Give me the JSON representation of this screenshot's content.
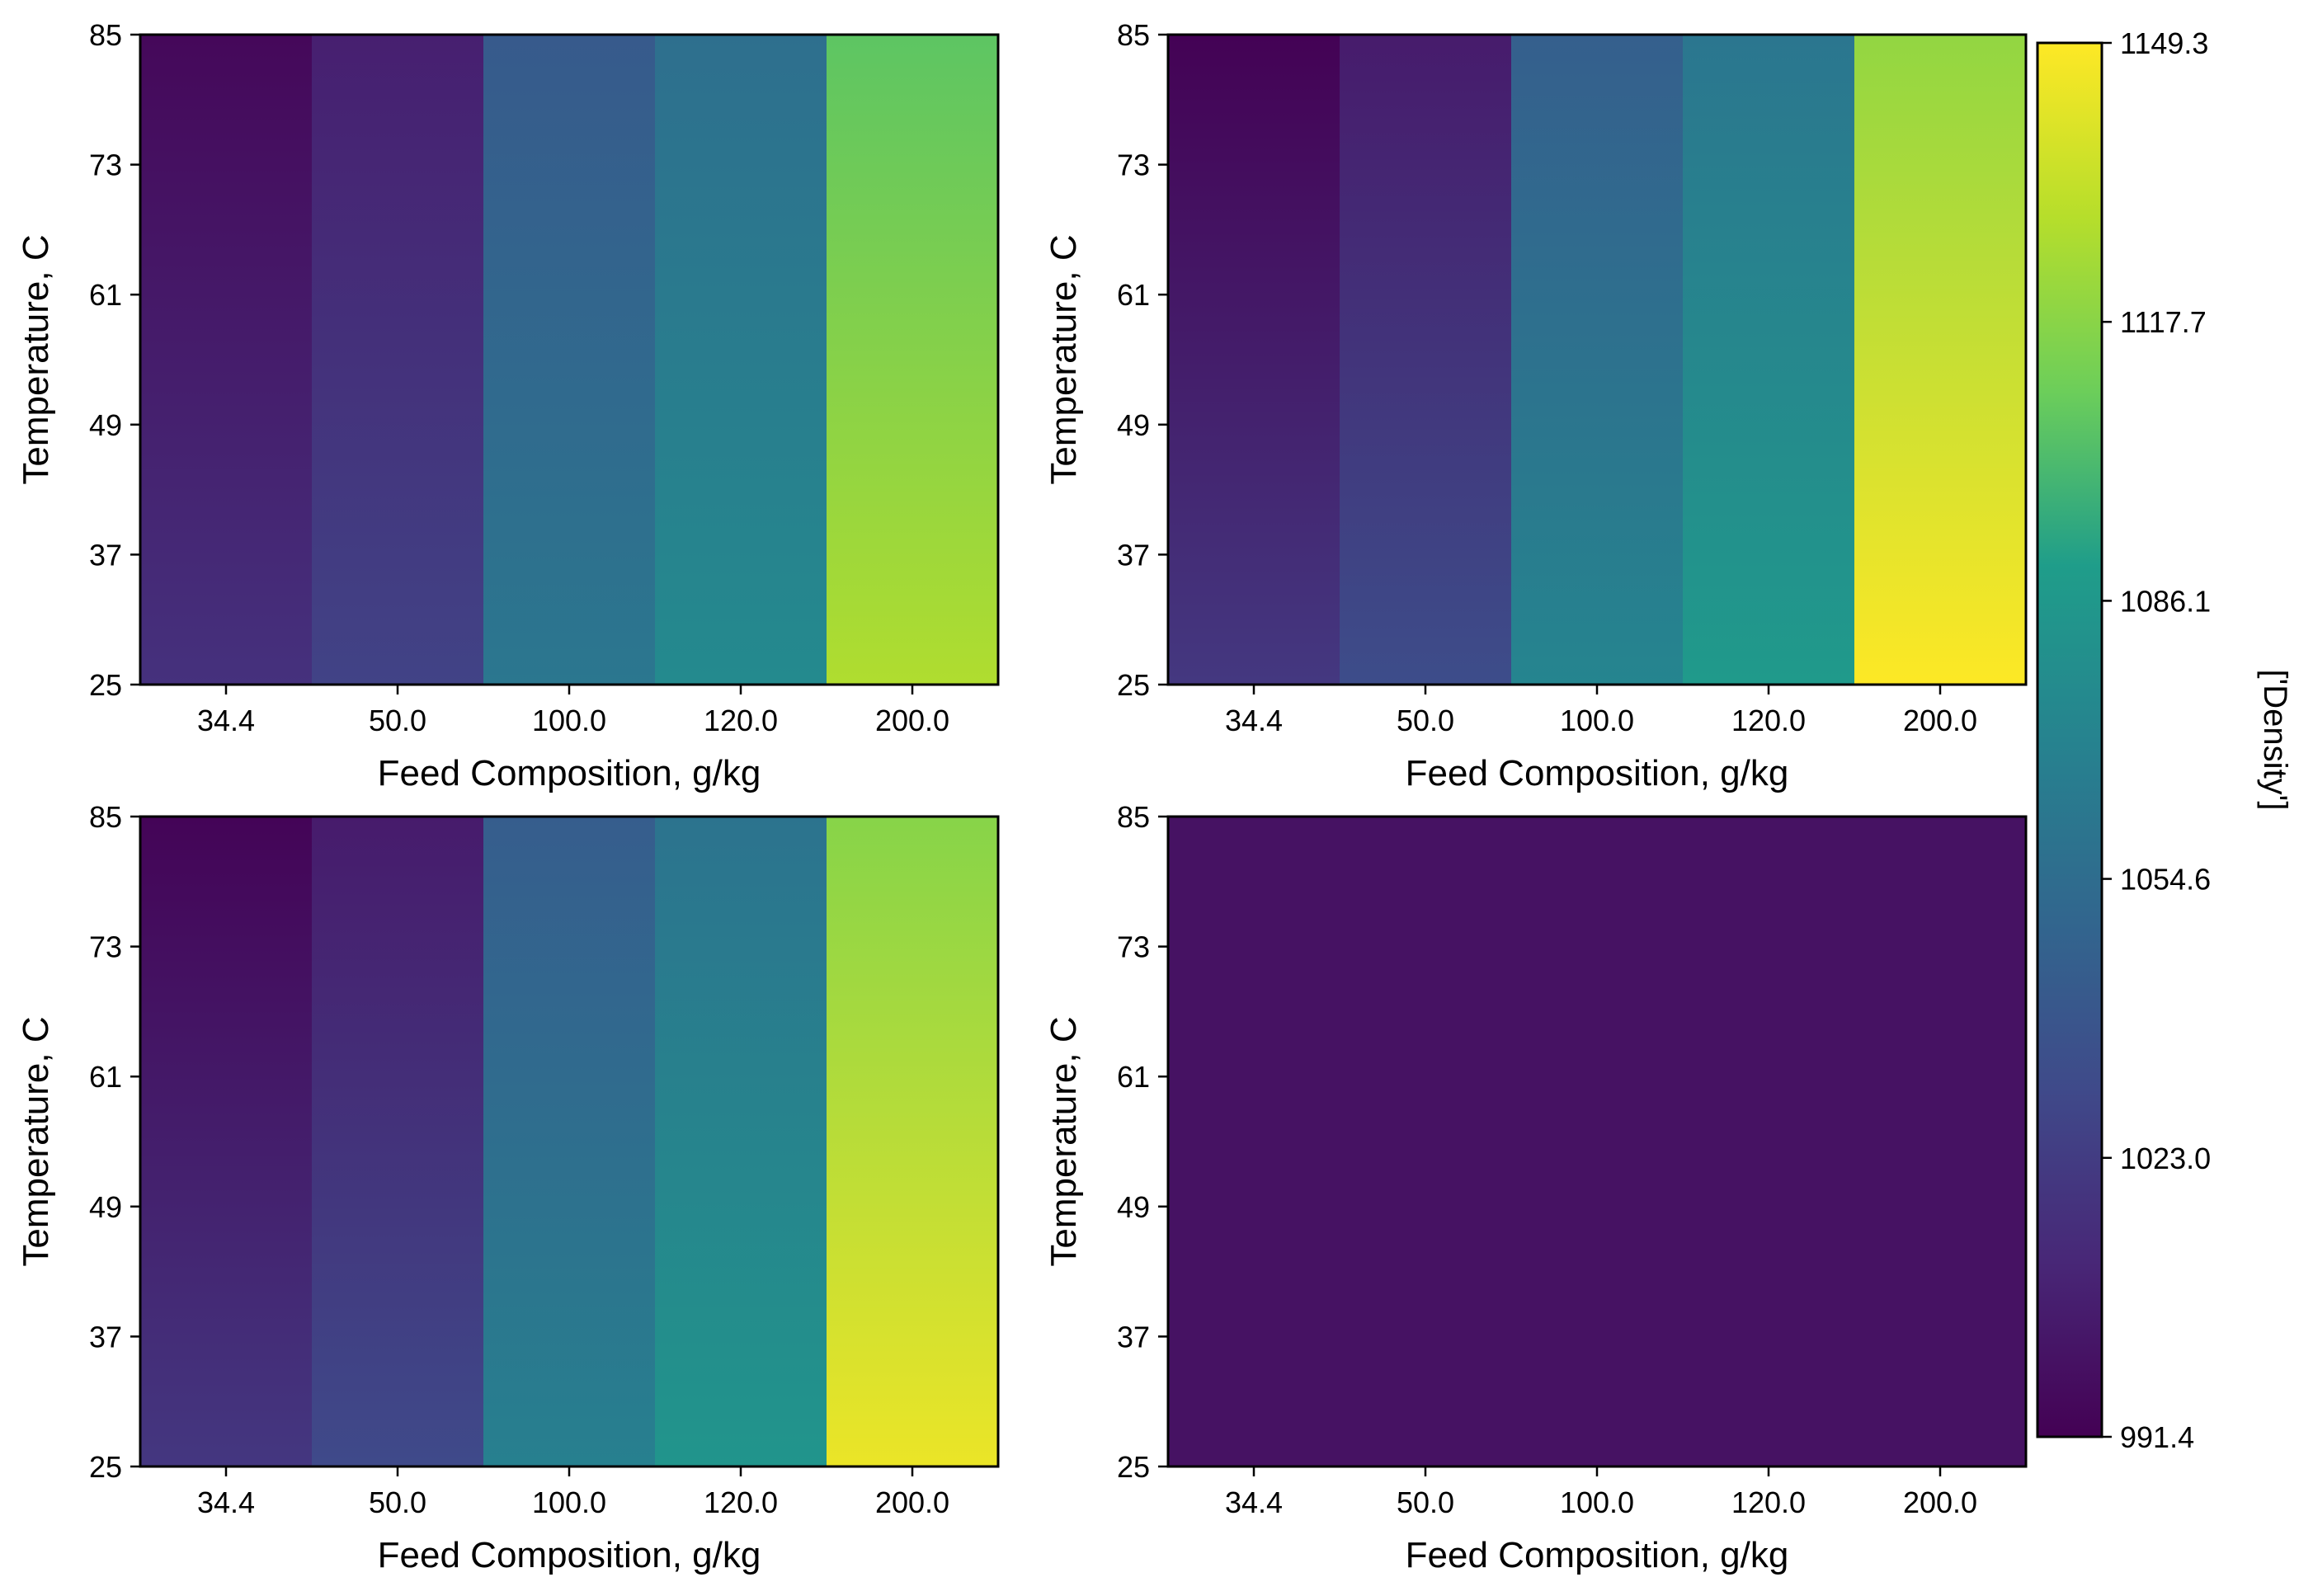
{
  "colormap": {
    "name": "viridis",
    "stops": [
      "#440154",
      "#482777",
      "#3f4a8a",
      "#31678e",
      "#26838f",
      "#1f9d8a",
      "#6cce5a",
      "#b6de2b",
      "#fee825"
    ]
  },
  "colorbar": {
    "label": "['Density']",
    "vmin": 991.4,
    "vmax": 1149.3,
    "ticks": [
      991.4,
      1023.0,
      1054.6,
      1086.1,
      1117.7,
      1149.3
    ],
    "tick_labels": [
      "991.4",
      "1023.0",
      "1054.6",
      "1086.1",
      "1117.7",
      "1149.3"
    ]
  },
  "chart_data": [
    {
      "type": "heatmap",
      "xlabel": "Feed Composition, g/kg",
      "ylabel": "Temperature, C",
      "categories": [
        "34.4",
        "50.0",
        "100.0",
        "120.0",
        "200.0"
      ],
      "y_ticks": [
        "25",
        "37",
        "49",
        "61",
        "73",
        "85"
      ],
      "ylim": [
        25,
        85
      ],
      "bottom_values": [
        1017.0,
        1027.0,
        1062.0,
        1076.0,
        1128.0
      ],
      "top_values": [
        995.0,
        1007.0,
        1042.0,
        1056.0,
        1106.0
      ]
    },
    {
      "type": "heatmap",
      "xlabel": "Feed Composition, g/kg",
      "ylabel": "Temperature, C",
      "categories": [
        "34.4",
        "50.0",
        "100.0",
        "120.0",
        "200.0"
      ],
      "y_ticks": [
        "25",
        "37",
        "49",
        "61",
        "73",
        "85"
      ],
      "ylim": [
        25,
        85
      ],
      "bottom_values": [
        1021.0,
        1033.0,
        1072.0,
        1088.0,
        1149.0
      ],
      "top_values": [
        992.0,
        1005.0,
        1045.0,
        1061.0,
        1120.0
      ]
    },
    {
      "type": "heatmap",
      "xlabel": "Feed Composition, g/kg",
      "ylabel": "Temperature, C",
      "categories": [
        "34.4",
        "50.0",
        "100.0",
        "120.0",
        "200.0"
      ],
      "y_ticks": [
        "25",
        "37",
        "49",
        "61",
        "73",
        "85"
      ],
      "ylim": [
        25,
        85
      ],
      "bottom_values": [
        1020.0,
        1031.0,
        1068.0,
        1084.0,
        1144.0
      ],
      "top_values": [
        993.0,
        1005.0,
        1044.0,
        1059.0,
        1117.0
      ]
    },
    {
      "type": "heatmap",
      "xlabel": "Feed Composition, g/kg",
      "ylabel": "Temperature, C",
      "categories": [
        "34.4",
        "50.0",
        "100.0",
        "120.0",
        "200.0"
      ],
      "y_ticks": [
        "25",
        "37",
        "49",
        "61",
        "73",
        "85"
      ],
      "ylim": [
        25,
        85
      ],
      "bottom_values": [
        1000.0,
        1000.0,
        1000.0,
        1000.0,
        1000.0
      ],
      "top_values": [
        1000.0,
        1000.0,
        1000.0,
        1000.0,
        1000.0
      ]
    }
  ]
}
